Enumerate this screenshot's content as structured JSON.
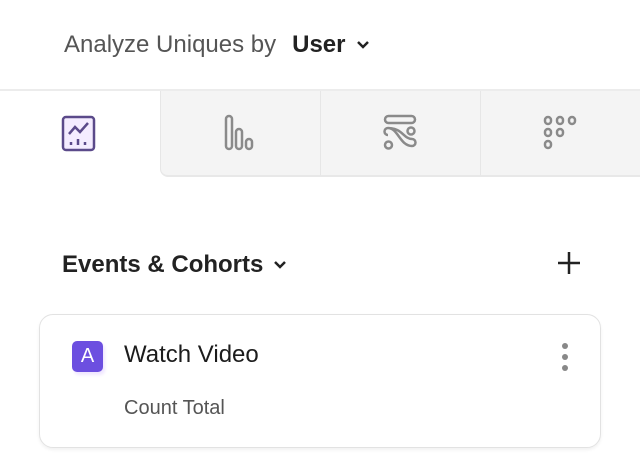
{
  "header": {
    "label": "Analyze Uniques by",
    "value": "User"
  },
  "tabs": [
    {
      "icon": "insights-chart-icon",
      "active": true
    },
    {
      "icon": "bar-chart-icon",
      "active": false
    },
    {
      "icon": "flows-icon",
      "active": false
    },
    {
      "icon": "retention-grid-icon",
      "active": false
    }
  ],
  "section": {
    "title": "Events & Cohorts"
  },
  "events": [
    {
      "badge": "A",
      "name": "Watch Video",
      "measure": "Count Total"
    }
  ],
  "colors": {
    "accent": "#6c4fe0",
    "icon_gray": "#8a8a8a",
    "active_icon": "#5b4a8a"
  }
}
